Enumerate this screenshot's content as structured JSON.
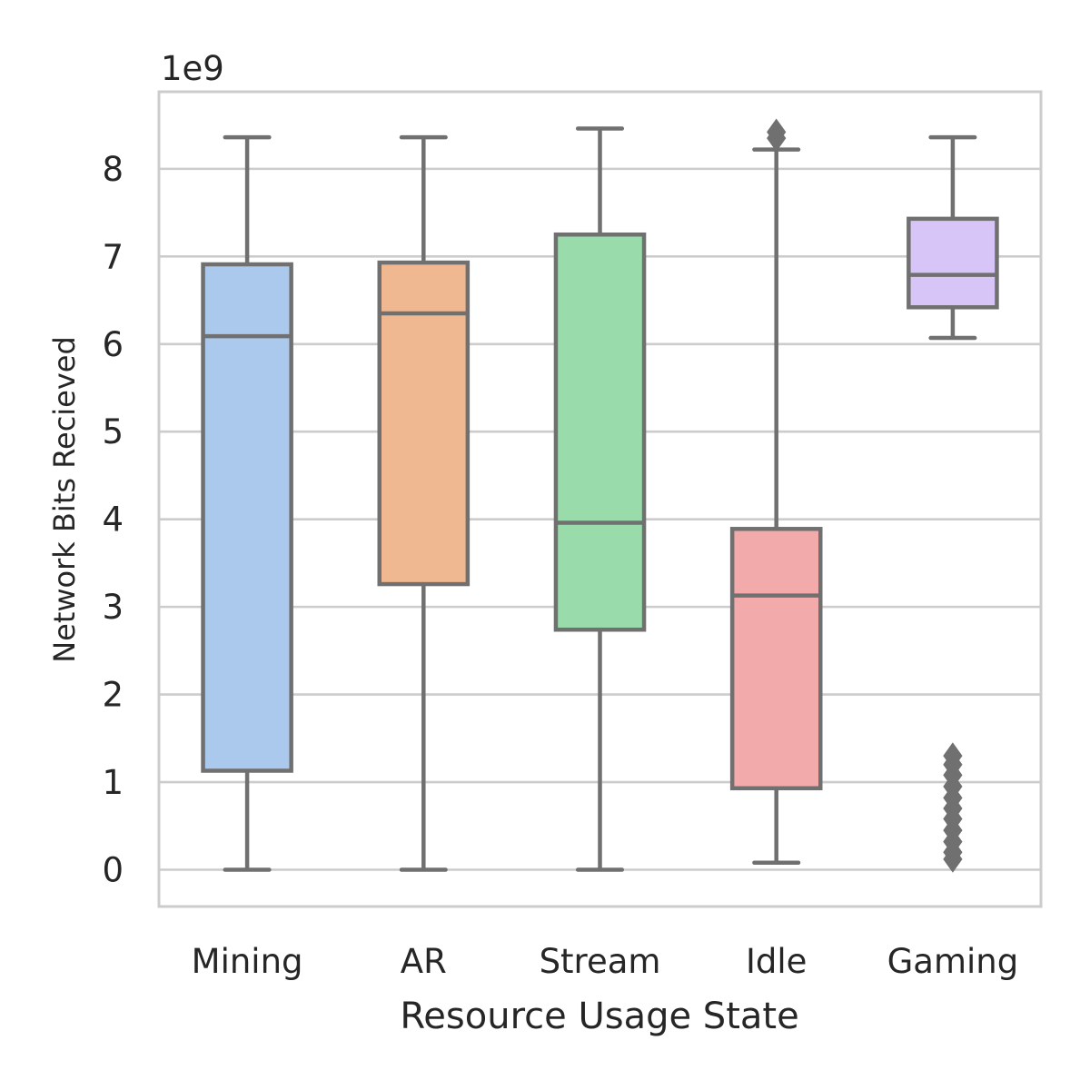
{
  "chart_data": {
    "type": "box",
    "title": "",
    "xlabel": "Resource Usage State",
    "ylabel": "Network Bits Recieved",
    "y_offset_label": "1e9",
    "y_scale": 1000000000,
    "ylim": [
      -0.42,
      8.88
    ],
    "yticks": [
      0,
      1,
      2,
      3,
      4,
      5,
      6,
      7,
      8
    ],
    "grid": "horizontal",
    "legend": "none",
    "categories": [
      "Mining",
      "AR",
      "Stream",
      "Idle",
      "Gaming"
    ],
    "boxes": [
      {
        "category": "Mining",
        "whisker_low": 0.0,
        "q1": 1.13,
        "median": 6.09,
        "q3": 6.91,
        "whisker_high": 8.36,
        "outliers": [],
        "color": "#abc9ed"
      },
      {
        "category": "AR",
        "whisker_low": 0.0,
        "q1": 3.26,
        "median": 6.35,
        "q3": 6.93,
        "whisker_high": 8.36,
        "outliers": [],
        "color": "#f0b890"
      },
      {
        "category": "Stream",
        "whisker_low": 0.0,
        "q1": 2.74,
        "median": 3.96,
        "q3": 7.25,
        "whisker_high": 8.46,
        "outliers": [],
        "color": "#9adbab"
      },
      {
        "category": "Idle",
        "whisker_low": 0.08,
        "q1": 0.93,
        "median": 3.13,
        "q3": 3.89,
        "whisker_high": 8.22,
        "outliers": [
          8.35,
          8.42
        ],
        "color": "#f2aaaa"
      },
      {
        "category": "Gaming",
        "whisker_low": 6.07,
        "q1": 6.42,
        "median": 6.79,
        "q3": 7.43,
        "whisker_high": 8.36,
        "outliers": [
          0.12,
          0.2,
          0.32,
          0.45,
          0.58,
          0.7,
          0.82,
          0.95,
          1.08,
          1.2,
          1.3
        ],
        "color": "#d7c5f8"
      }
    ],
    "line_color": "#707070",
    "grid_color": "#cccccc",
    "spine_color": "#cccccc"
  }
}
